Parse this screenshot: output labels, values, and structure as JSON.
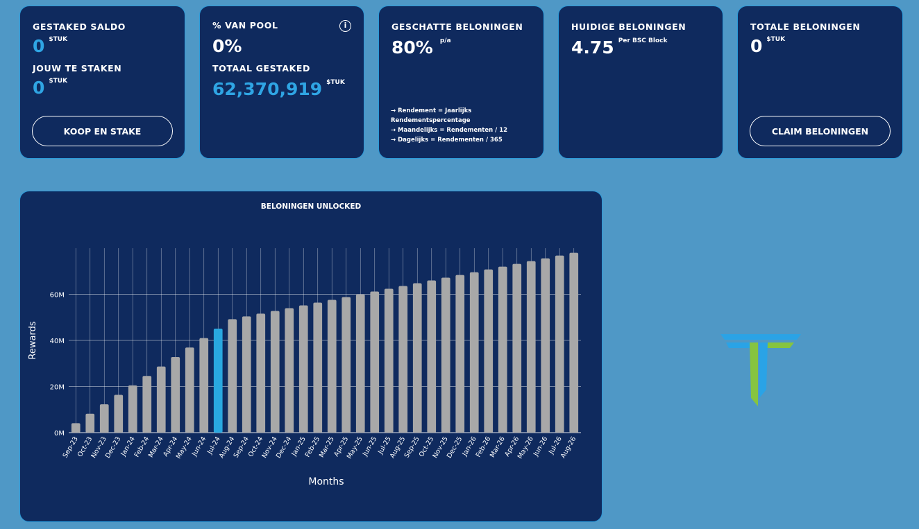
{
  "cards": {
    "staked_balance": {
      "label": "GESTAKED SALDO",
      "value": "0",
      "unit": "$TUK",
      "to_stake_label": "JOUW TE STAKEN",
      "to_stake_value": "0",
      "to_stake_unit": "$TUK",
      "button_label": "KOOP EN STAKE"
    },
    "pool_share": {
      "label": "% VAN POOL",
      "value": "0%",
      "info_icon": "i",
      "total_label": "TOTAAL GESTAKED",
      "total_value": "62,370,919",
      "total_unit": "$TUK"
    },
    "estimated_rewards": {
      "label": "GESCHATTE BELONINGEN",
      "value": "80%",
      "unit": "p/a",
      "notes": [
        "→ Rendement = Jaarlijks Rendementspercentage",
        "→ Maandelijks = Rendementen / 12",
        "→ Dagelijks = Rendementen / 365"
      ]
    },
    "current_rewards": {
      "label": "HUIDIGE BELONINGEN",
      "value": "4.75",
      "unit": "Per BSC Block"
    },
    "total_rewards": {
      "label": "TOTALE BELONINGEN",
      "value": "0",
      "unit": "$TUK",
      "button_label": "CLAIM BELONINGEN"
    }
  },
  "colors": {
    "page_bg": "#4f98c6",
    "card_bg": "#0f2a5e",
    "accent": "#2fa5e4",
    "bar_default": "#a8a8a8",
    "bar_highlight": "#29a8e0",
    "logo_blue": "#2aa3e6",
    "logo_green": "#86c440"
  },
  "chart_data": {
    "type": "bar",
    "title": "BELONINGEN UNLOCKED",
    "xlabel": "Months",
    "ylabel": "Rewards",
    "ylim": [
      0,
      80
    ],
    "y_ticks": [
      0,
      20,
      40,
      60
    ],
    "y_tick_labels": [
      "0M",
      "20M",
      "40M",
      "60M"
    ],
    "grid": true,
    "highlight_index": 10,
    "categories": [
      "Sep-23",
      "Oct-23",
      "Nov-23",
      "Dec-23",
      "Jan-24",
      "Feb-24",
      "Mar-24",
      "Apr-24",
      "May-24",
      "Jun-24",
      "Jul-24",
      "Aug-24",
      "Sep-24",
      "Oct-24",
      "Nov-24",
      "Dec-24",
      "Jan-25",
      "Feb-25",
      "Mar-25",
      "Apr-25",
      "May-25",
      "Jun-25",
      "Jul-25",
      "Aug-25",
      "Sep-25",
      "Oct-25",
      "Nov-25",
      "Dec-25",
      "Jan-26",
      "Feb-26",
      "Mar-26",
      "Apr-26",
      "May-26",
      "Jun-26",
      "Jul-26",
      "Aug-26"
    ],
    "values": [
      4.1,
      8.2,
      12.3,
      16.4,
      20.5,
      24.6,
      28.7,
      32.8,
      36.9,
      41.0,
      45.1,
      49.2,
      50.4,
      51.6,
      52.8,
      54.0,
      55.2,
      56.4,
      57.6,
      58.8,
      60.0,
      61.2,
      62.4,
      63.6,
      64.8,
      66.0,
      67.2,
      68.4,
      69.6,
      70.8,
      72.0,
      73.2,
      74.4,
      75.6,
      76.8,
      78.0
    ]
  }
}
